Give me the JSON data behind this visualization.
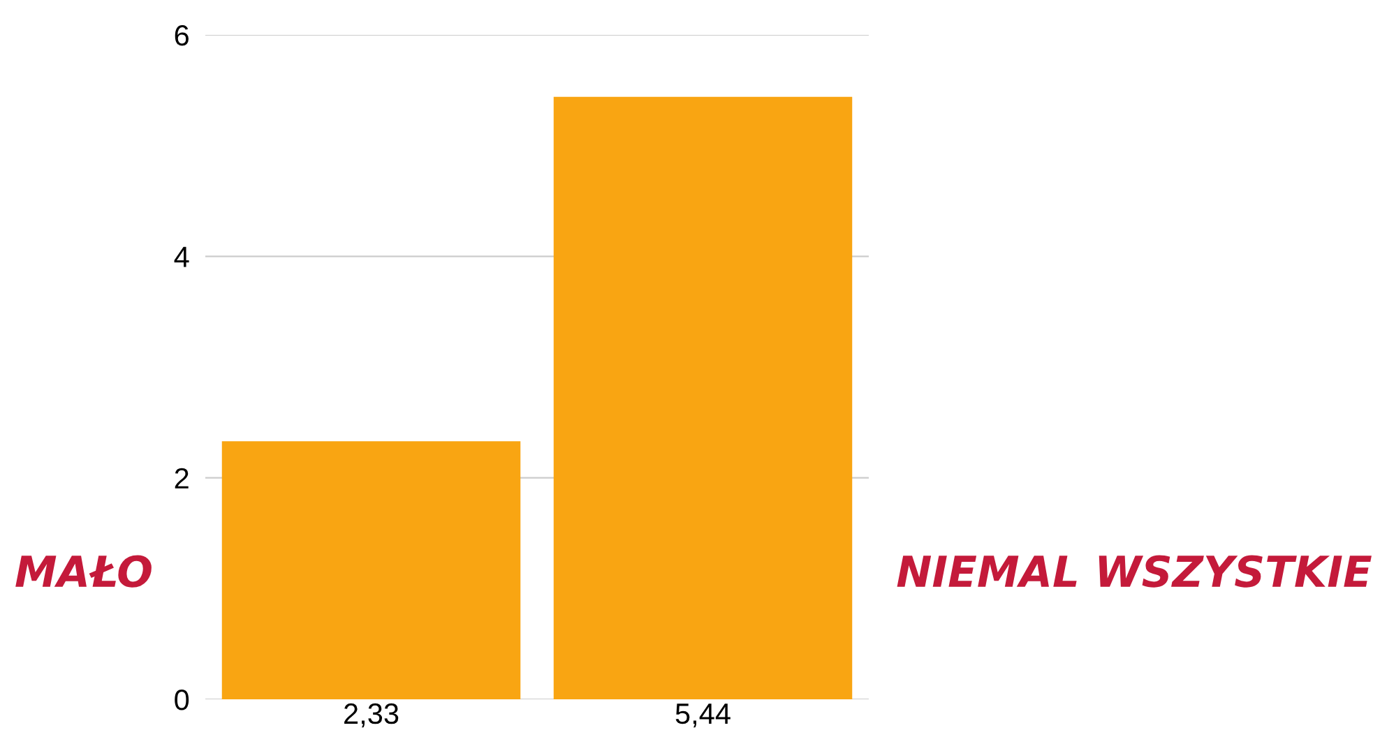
{
  "chart_data": {
    "type": "bar",
    "categories": [
      null,
      null
    ],
    "values": [
      2.33,
      5.44
    ],
    "value_labels": [
      "2,33",
      "5,44"
    ],
    "color": "#f9a512",
    "ylim": [
      0,
      6
    ],
    "yticks": [
      0,
      2,
      4,
      6
    ],
    "grid": "y",
    "legend": false,
    "annotations": [
      "MAŁO",
      "NIEMAL WSZYSTKIE"
    ]
  }
}
